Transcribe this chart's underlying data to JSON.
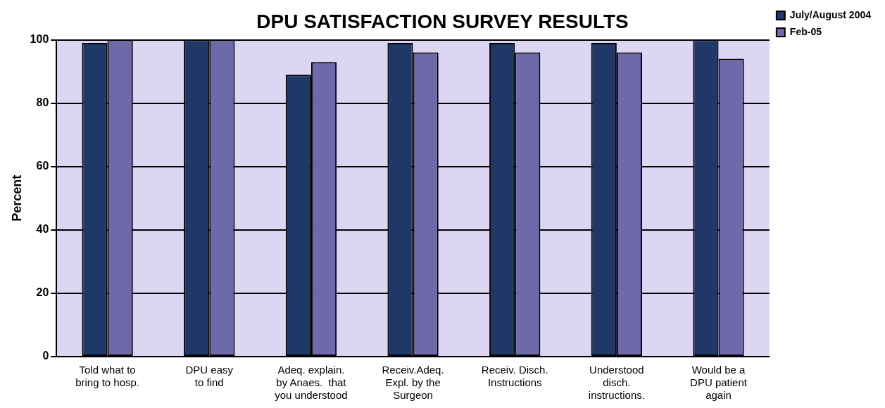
{
  "chart_data": {
    "type": "bar",
    "title": "DPU SATISFACTION SURVEY RESULTS",
    "ylabel": "Percent",
    "categories": [
      "Told what to\nbring to hosp.",
      "DPU easy\nto find",
      "Adeq. explain.\nby Anaes.  that\nyou understood",
      "Receiv.Adeq.\nExpl. by the\nSurgeon",
      "Receiv. Disch.\nInstructions",
      "Understood\ndisch.\ninstructions.",
      "Would be a\nDPU patient\nagain"
    ],
    "series": [
      {
        "name": "July/August 2004",
        "color": "#1f3868",
        "values": [
          99,
          100,
          89,
          99,
          99,
          99,
          100
        ]
      },
      {
        "name": "Feb-05",
        "color": "#6e6aaa",
        "values": [
          100,
          100,
          93,
          96,
          96,
          96,
          94
        ]
      }
    ],
    "ylim": [
      0,
      100
    ],
    "yticks": [
      0,
      20,
      40,
      60,
      80,
      100
    ],
    "grid": "y",
    "legend": "top right"
  }
}
